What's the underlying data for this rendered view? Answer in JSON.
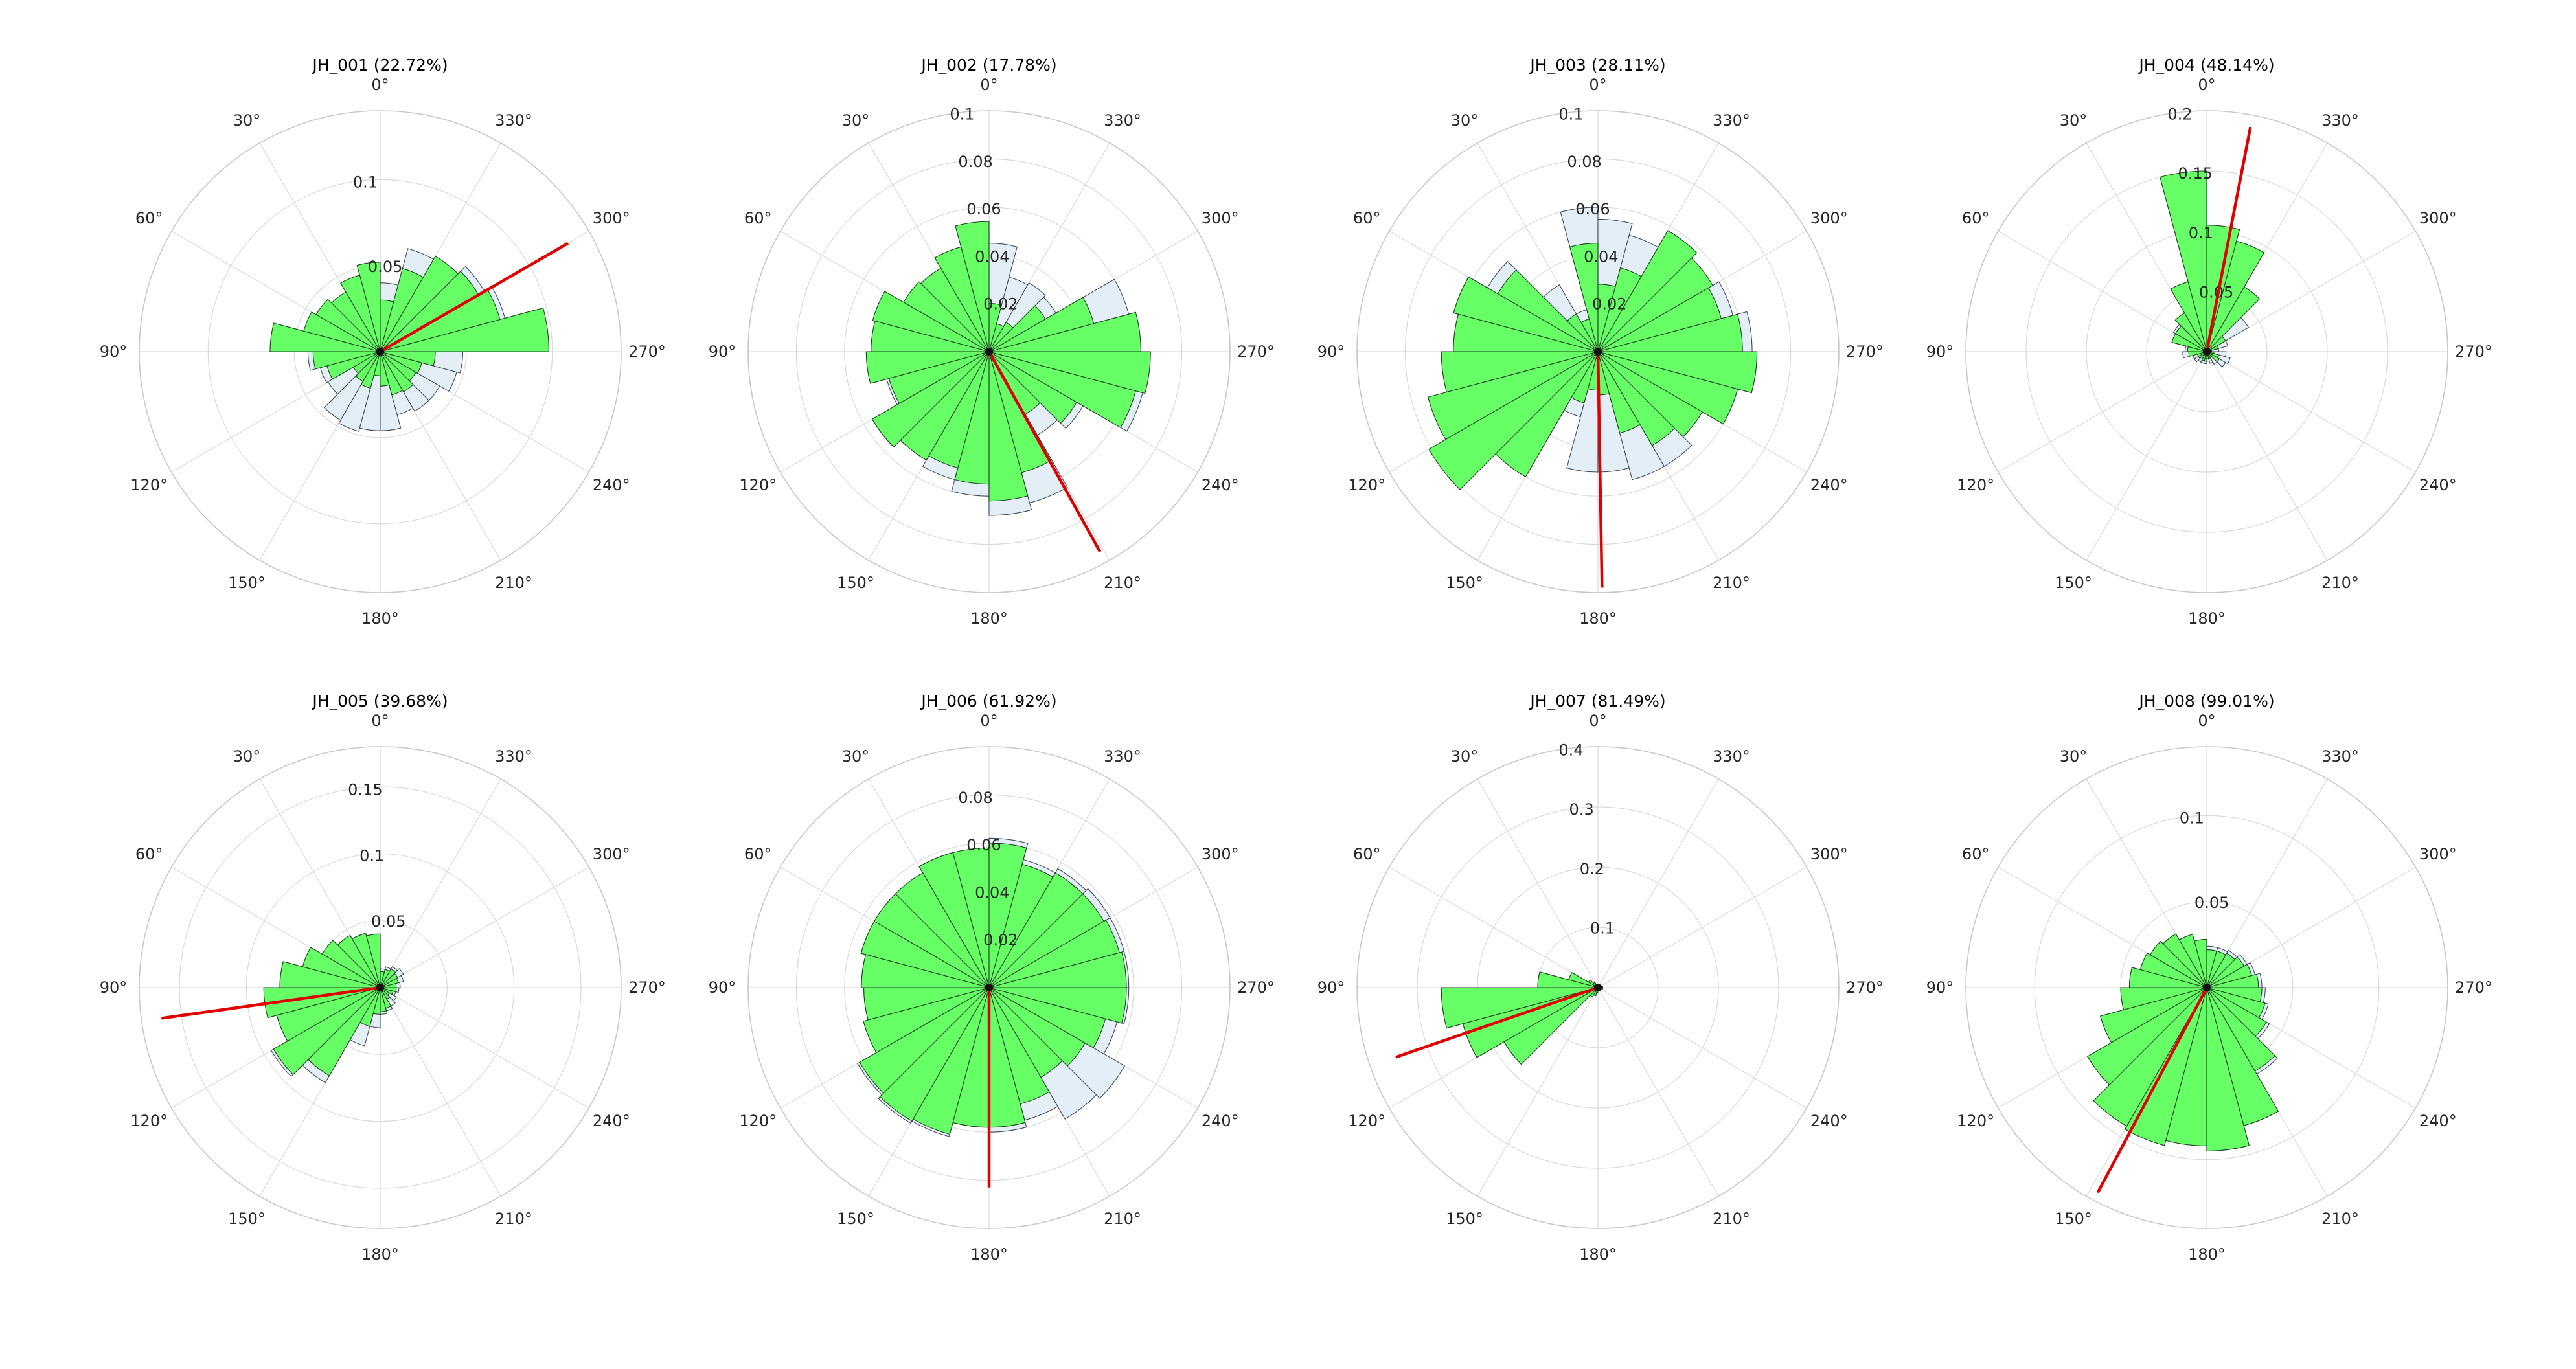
{
  "colors": {
    "bar_fill": "#66ff66",
    "bar_edge": "#1e3d1e",
    "bg_bar_fill": "#e4eef6",
    "bg_bar_edge": "#3c4a58",
    "mean_line": "#e00000",
    "grid": "#d9d9d9",
    "outer_ring": "#c8c8c8"
  },
  "chart_data": [
    {
      "type": "polar-bar",
      "title": "JH_001 (22.72%)",
      "angle_labels": [
        "0°",
        "30°",
        "60°",
        "90°",
        "120°",
        "150°",
        "180°",
        "210°",
        "240°",
        "270°",
        "300°",
        "330°"
      ],
      "direction": "counterclockwise",
      "zero_location": "top",
      "rmax": 0.14,
      "rticks": [
        0.05,
        0.1
      ],
      "rtick_labels": [
        "0.05",
        "0.1"
      ],
      "bins": 24,
      "values": [
        0.052,
        0.046,
        0.04,
        0.043,
        0.046,
        0.064,
        0.039,
        0.032,
        0.018,
        0.02,
        0.022,
        0.014,
        0.02,
        0.026,
        0.027,
        0.024,
        0.025,
        0.032,
        0.098,
        0.072,
        0.066,
        0.064,
        0.05,
        0.03
      ],
      "background": [
        0.048,
        0.042,
        0.038,
        0.04,
        0.044,
        0.06,
        0.042,
        0.036,
        0.035,
        0.046,
        0.048,
        0.046,
        0.046,
        0.038,
        0.04,
        0.04,
        0.046,
        0.048,
        0.095,
        0.075,
        0.07,
        0.062,
        0.062,
        0.04
      ],
      "mean_angle": 300,
      "mean_length": 0.126
    },
    {
      "type": "polar-bar",
      "title": "JH_002 (17.78%)",
      "angle_labels": [
        "0°",
        "30°",
        "60°",
        "90°",
        "120°",
        "150°",
        "180°",
        "210°",
        "240°",
        "270°",
        "300°",
        "330°"
      ],
      "direction": "counterclockwise",
      "zero_location": "top",
      "rmax": 0.1,
      "rticks": [
        0.02,
        0.04,
        0.06,
        0.08,
        0.1
      ],
      "rtick_labels": [
        "0.02",
        "0.04",
        "0.06",
        "0.08",
        "0.1"
      ],
      "bins": 24,
      "values": [
        0.054,
        0.045,
        0.04,
        0.041,
        0.05,
        0.049,
        0.051,
        0.043,
        0.056,
        0.052,
        0.05,
        0.055,
        0.062,
        0.052,
        0.03,
        0.042,
        0.063,
        0.067,
        0.063,
        0.045,
        0.027,
        0.014,
        0.012,
        0.02
      ],
      "background": [
        0.05,
        0.043,
        0.036,
        0.035,
        0.04,
        0.048,
        0.05,
        0.044,
        0.056,
        0.052,
        0.055,
        0.06,
        0.068,
        0.065,
        0.04,
        0.045,
        0.066,
        0.066,
        0.06,
        0.06,
        0.032,
        0.033,
        0.032,
        0.045
      ],
      "mean_angle": 209,
      "mean_length": 0.095
    },
    {
      "type": "polar-bar",
      "title": "JH_003 (28.11%)",
      "angle_labels": [
        "0°",
        "30°",
        "60°",
        "90°",
        "120°",
        "150°",
        "180°",
        "210°",
        "240°",
        "270°",
        "300°",
        "330°"
      ],
      "direction": "counterclockwise",
      "zero_location": "top",
      "rmax": 0.1,
      "rticks": [
        0.02,
        0.04,
        0.06,
        0.08,
        0.1
      ],
      "rtick_labels": [
        "0.02",
        "0.04",
        "0.06",
        "0.08",
        "0.1"
      ],
      "bins": 24,
      "values": [
        0.045,
        0.014,
        0.018,
        0.048,
        0.062,
        0.06,
        0.065,
        0.073,
        0.081,
        0.06,
        0.022,
        0.016,
        0.018,
        0.035,
        0.045,
        0.05,
        0.06,
        0.066,
        0.06,
        0.053,
        0.055,
        0.058,
        0.036,
        0.028
      ],
      "background": [
        0.06,
        0.018,
        0.032,
        0.053,
        0.062,
        0.06,
        0.063,
        0.068,
        0.075,
        0.055,
        0.028,
        0.05,
        0.05,
        0.055,
        0.055,
        0.05,
        0.06,
        0.066,
        0.064,
        0.058,
        0.054,
        0.058,
        0.05,
        0.055
      ],
      "mean_angle": 181,
      "mean_length": 0.098
    },
    {
      "type": "polar-bar",
      "title": "JH_004 (48.14%)",
      "angle_labels": [
        "0°",
        "30°",
        "60°",
        "90°",
        "120°",
        "150°",
        "180°",
        "210°",
        "240°",
        "270°",
        "300°",
        "330°"
      ],
      "direction": "counterclockwise",
      "zero_location": "top",
      "rmax": 0.2,
      "rticks": [
        0.05,
        0.1,
        0.15,
        0.2
      ],
      "rtick_labels": [
        "0.05",
        "0.1",
        "0.15",
        "0.2"
      ],
      "bins": 24,
      "values": [
        0.15,
        0.06,
        0.037,
        0.03,
        0.03,
        0.016,
        0.015,
        0.008,
        0.008,
        0.006,
        0.008,
        0.008,
        0.006,
        0.006,
        0.006,
        0.012,
        0.01,
        0.006,
        0.004,
        0.01,
        0.018,
        0.062,
        0.095,
        0.105
      ],
      "background": [
        0.145,
        0.058,
        0.035,
        0.032,
        0.03,
        0.018,
        0.02,
        0.012,
        0.012,
        0.01,
        0.01,
        0.01,
        0.008,
        0.01,
        0.012,
        0.018,
        0.02,
        0.016,
        0.01,
        0.018,
        0.04,
        0.06,
        0.09,
        0.1
      ],
      "mean_angle": 349,
      "mean_length": 0.19
    },
    {
      "type": "polar-bar",
      "title": "JH_005 (39.68%)",
      "angle_labels": [
        "0°",
        "30°",
        "60°",
        "90°",
        "120°",
        "150°",
        "180°",
        "210°",
        "240°",
        "270°",
        "300°",
        "330°"
      ],
      "direction": "counterclockwise",
      "zero_location": "top",
      "rmax": 0.18,
      "rticks": [
        0.05,
        0.1,
        0.15
      ],
      "rtick_labels": [
        "0.05",
        "0.1",
        "0.15"
      ],
      "bins": 24,
      "values": [
        0.04,
        0.042,
        0.045,
        0.05,
        0.06,
        0.075,
        0.087,
        0.08,
        0.092,
        0.076,
        0.03,
        0.02,
        0.018,
        0.016,
        0.01,
        0.008,
        0.01,
        0.012,
        0.012,
        0.014,
        0.015,
        0.016,
        0.014,
        0.012
      ],
      "background": [
        0.04,
        0.042,
        0.045,
        0.048,
        0.06,
        0.075,
        0.086,
        0.08,
        0.094,
        0.082,
        0.045,
        0.03,
        0.02,
        0.018,
        0.016,
        0.014,
        0.012,
        0.014,
        0.015,
        0.018,
        0.02,
        0.018,
        0.016,
        0.014
      ],
      "mean_angle": 98,
      "mean_length": 0.165
    },
    {
      "type": "polar-bar",
      "title": "JH_006 (61.92%)",
      "angle_labels": [
        "0°",
        "30°",
        "60°",
        "90°",
        "120°",
        "150°",
        "180°",
        "210°",
        "240°",
        "270°",
        "300°",
        "330°"
      ],
      "direction": "counterclockwise",
      "zero_location": "top",
      "rmax": 0.1,
      "rticks": [
        0.02,
        0.04,
        0.06,
        0.08
      ],
      "rtick_labels": [
        "0.02",
        "0.04",
        "0.06",
        "0.08"
      ],
      "bins": 24,
      "values": [
        0.058,
        0.058,
        0.055,
        0.055,
        0.055,
        0.053,
        0.052,
        0.054,
        0.062,
        0.064,
        0.063,
        0.058,
        0.058,
        0.05,
        0.043,
        0.046,
        0.05,
        0.057,
        0.057,
        0.056,
        0.055,
        0.055,
        0.053,
        0.06
      ],
      "background": [
        0.055,
        0.058,
        0.055,
        0.055,
        0.055,
        0.053,
        0.052,
        0.054,
        0.063,
        0.065,
        0.064,
        0.058,
        0.06,
        0.057,
        0.063,
        0.065,
        0.055,
        0.058,
        0.058,
        0.058,
        0.058,
        0.057,
        0.055,
        0.062
      ],
      "mean_angle": 180,
      "mean_length": 0.083
    },
    {
      "type": "polar-bar",
      "title": "JH_007 (81.49%)",
      "angle_labels": [
        "0°",
        "30°",
        "60°",
        "90°",
        "120°",
        "150°",
        "180°",
        "210°",
        "240°",
        "270°",
        "300°",
        "330°"
      ],
      "direction": "counterclockwise",
      "zero_location": "top",
      "rmax": 0.4,
      "rticks": [
        0.1,
        0.2,
        0.3,
        0.4
      ],
      "rtick_labels": [
        "0.1",
        "0.2",
        "0.3",
        "0.4"
      ],
      "bins": 24,
      "values": [
        0.004,
        0.004,
        0.01,
        0.018,
        0.05,
        0.1,
        0.26,
        0.232,
        0.18,
        0.018,
        0.014,
        0.008,
        0.006,
        0.004,
        0.004,
        0.006,
        0.006,
        0.008,
        0.008,
        0.006,
        0.004,
        0.004,
        0.004,
        0.004
      ],
      "background": [
        0.004,
        0.004,
        0.01,
        0.018,
        0.05,
        0.1,
        0.26,
        0.232,
        0.18,
        0.018,
        0.014,
        0.008,
        0.006,
        0.004,
        0.004,
        0.006,
        0.006,
        0.008,
        0.008,
        0.006,
        0.004,
        0.004,
        0.004,
        0.004
      ],
      "mean_angle": 109,
      "mean_length": 0.355
    },
    {
      "type": "polar-bar",
      "title": "JH_008 (99.01%)",
      "angle_labels": [
        "0°",
        "30°",
        "60°",
        "90°",
        "120°",
        "150°",
        "180°",
        "210°",
        "240°",
        "270°",
        "300°",
        "330°"
      ],
      "direction": "counterclockwise",
      "zero_location": "top",
      "rmax": 0.14,
      "rticks": [
        0.05,
        0.1
      ],
      "rtick_labels": [
        "0.05",
        "0.1"
      ],
      "bins": 24,
      "values": [
        0.028,
        0.032,
        0.036,
        0.038,
        0.04,
        0.045,
        0.05,
        0.064,
        0.08,
        0.093,
        0.095,
        0.092,
        0.095,
        0.083,
        0.056,
        0.04,
        0.035,
        0.032,
        0.03,
        0.027,
        0.025,
        0.023,
        0.022,
        0.022
      ],
      "background": [
        0.028,
        0.032,
        0.036,
        0.038,
        0.04,
        0.045,
        0.05,
        0.064,
        0.08,
        0.093,
        0.095,
        0.092,
        0.095,
        0.083,
        0.058,
        0.042,
        0.037,
        0.034,
        0.032,
        0.029,
        0.027,
        0.025,
        0.024,
        0.024
      ],
      "mean_angle": 152,
      "mean_length": 0.135
    }
  ]
}
